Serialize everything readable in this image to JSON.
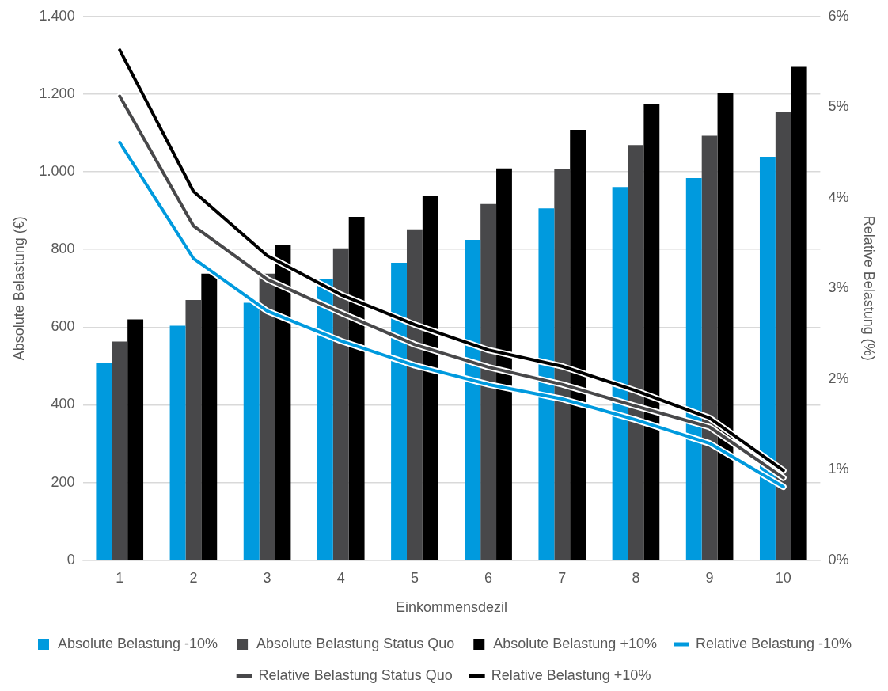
{
  "chart_data": {
    "type": "bar",
    "xlabel": "Einkommensdezil",
    "ylabel": "Absolute Belastung (€)",
    "y2label": "Relative Belastung (%)",
    "categories": [
      "1",
      "2",
      "3",
      "4",
      "5",
      "6",
      "7",
      "8",
      "9",
      "10"
    ],
    "ylim": [
      0,
      1400
    ],
    "yticks": [
      0,
      {
        "value": 200,
        "label": "200"
      },
      {
        "value": 400,
        "label": "400"
      },
      {
        "value": 600,
        "label": "600"
      },
      {
        "value": 800,
        "label": "800"
      },
      {
        "value": 1000,
        "label": "1.000"
      },
      {
        "value": 1200,
        "label": "1.200"
      },
      {
        "value": 1400,
        "label": "1.400"
      }
    ],
    "y2lim": [
      0,
      6
    ],
    "y2ticks": [
      {
        "value": 0,
        "label": "0%"
      },
      {
        "value": 1,
        "label": "1%"
      },
      {
        "value": 2,
        "label": "2%"
      },
      {
        "value": 3,
        "label": "3%"
      },
      {
        "value": 4,
        "label": "4%"
      },
      {
        "value": 5,
        "label": "5%"
      },
      {
        "value": 6,
        "label": "6%"
      }
    ],
    "grid": "y",
    "legend": "bottom",
    "marker": "none",
    "line_style": "solid",
    "series": [
      {
        "name": "Absolute Belastung -10%",
        "color": "#009ade",
        "values": [
          507,
          604,
          663,
          723,
          766,
          825,
          906,
          961,
          984,
          1039
        ]
      },
      {
        "name": "Absolute Belastung Status Quo",
        "color": "#48484a",
        "values": [
          563,
          670,
          738,
          803,
          852,
          917,
          1007,
          1069,
          1093,
          1154
        ]
      },
      {
        "name": "Absolute Belastung +10%",
        "color": "#000000",
        "values": [
          620,
          738,
          811,
          884,
          937,
          1009,
          1108,
          1175,
          1204,
          1270
        ]
      },
      {
        "name": "Relative Belastung -10%",
        "type": "line",
        "axis": "y2",
        "color": "#009ade",
        "values": [
          4.61,
          3.33,
          2.75,
          2.42,
          2.15,
          1.94,
          1.78,
          1.55,
          1.29,
          0.81
        ]
      },
      {
        "name": "Relative Belastung Status Quo",
        "type": "line",
        "axis": "y2",
        "color": "#48484a",
        "values": [
          5.12,
          3.69,
          3.1,
          2.73,
          2.38,
          2.13,
          1.94,
          1.7,
          1.47,
          0.91
        ]
      },
      {
        "name": "Relative Belastung +10%",
        "type": "line",
        "axis": "y2",
        "color": "#000000",
        "values": [
          5.63,
          4.07,
          3.36,
          2.93,
          2.6,
          2.32,
          2.14,
          1.87,
          1.57,
          0.99
        ]
      }
    ]
  }
}
